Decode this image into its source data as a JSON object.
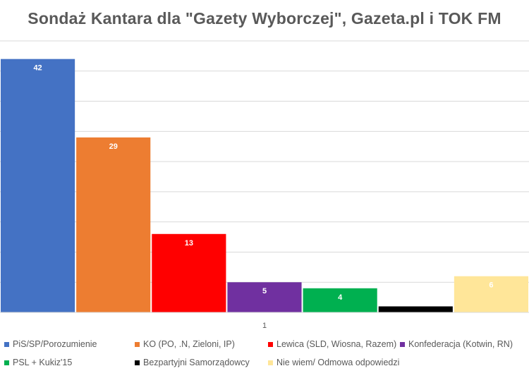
{
  "chart_data": {
    "type": "bar",
    "title": "Sondaż Kantara dla \"Gazety Wyborczej\", Gazeta.pl i TOK FM",
    "categories": [
      "1"
    ],
    "xlabel": "",
    "ylabel": "",
    "ylim": [
      0,
      45
    ],
    "grid": true,
    "legend_position": "bottom",
    "series": [
      {
        "name": "PiS/SP/Porozumienie",
        "values": [
          42
        ],
        "color": "#4472C4"
      },
      {
        "name": "KO (PO, .N, Zieloni, IP)",
        "values": [
          29
        ],
        "color": "#ED7D31"
      },
      {
        "name": "Lewica (SLD, Wiosna, Razem)",
        "values": [
          13
        ],
        "color": "#FF0000"
      },
      {
        "name": "Konfederacja (Kotwin, RN)",
        "values": [
          5
        ],
        "color": "#7030A0"
      },
      {
        "name": "PSL + Kukiz'15",
        "values": [
          4
        ],
        "color": "#00B050"
      },
      {
        "name": "Bezpartyjni Samorządowcy",
        "values": [
          1
        ],
        "color": "#000000"
      },
      {
        "name": "Nie wiem/ Odmowa odpowiedzi",
        "values": [
          6
        ],
        "color": "#FFE699"
      }
    ]
  }
}
